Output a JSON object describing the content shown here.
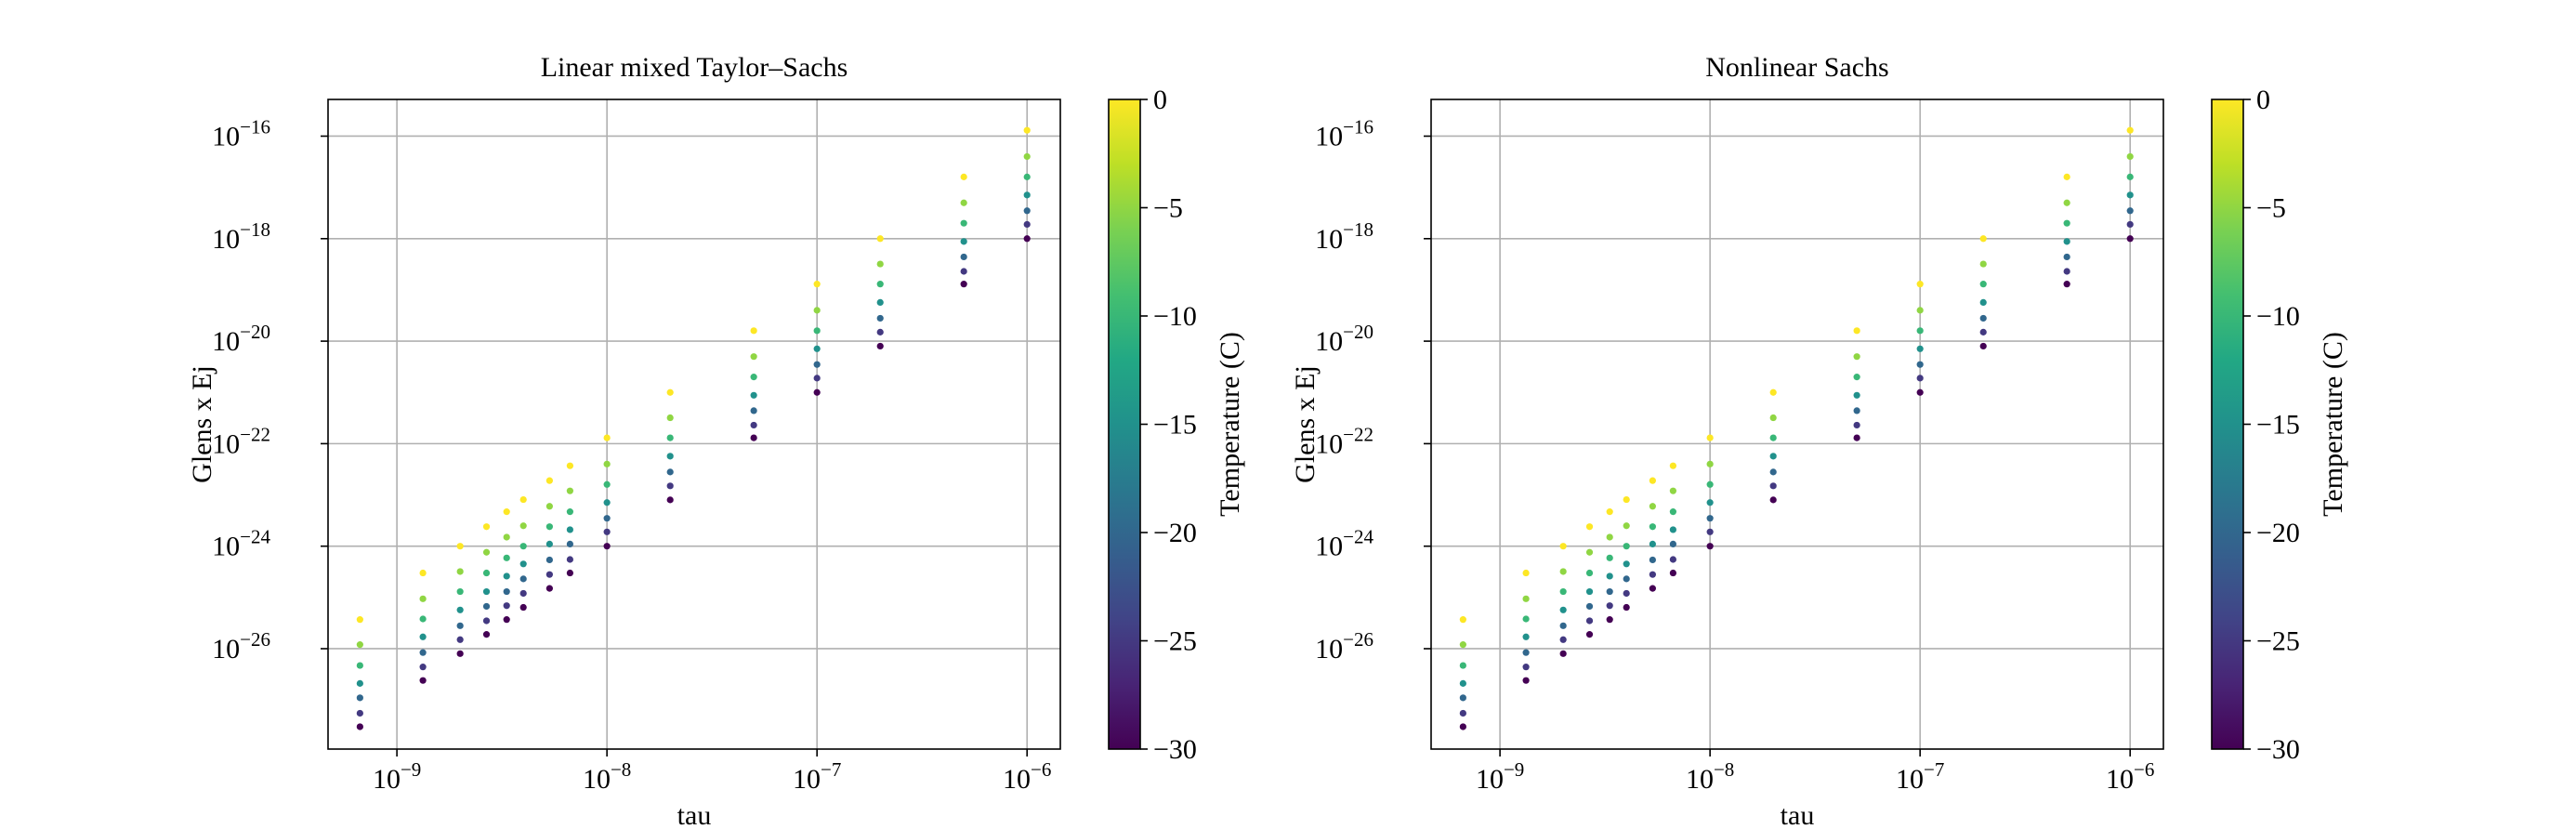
{
  "chart_data": [
    {
      "type": "scatter",
      "title": "Linear mixed Taylor–Sachs",
      "x_label": "tau",
      "y_label": "Glens x Ej",
      "colorbar_label": "Temperature (C)",
      "colormap": "viridis",
      "clim": [
        -30,
        0
      ],
      "cticks": [
        0,
        {
          "value": -5,
          "label": "−5"
        },
        {
          "value": -10,
          "label": "−10"
        },
        {
          "value": -15,
          "label": "−15"
        },
        {
          "value": -20,
          "label": "−20"
        },
        {
          "value": -25,
          "label": "−25"
        },
        {
          "value": -30,
          "label": "−30"
        }
      ],
      "log_x": true,
      "log_y": true,
      "grid": true,
      "xlim": [
        4.7e-10,
        1.44e-06
      ],
      "ylim": [
        1.1e-28,
        5.2e-16
      ],
      "xticks": [
        {
          "value": 1e-09,
          "label": "10",
          "exponent": "−9"
        },
        {
          "value": 1e-08,
          "label": "10",
          "exponent": "−8"
        },
        {
          "value": 1e-07,
          "label": "10",
          "exponent": "−7"
        },
        {
          "value": 1e-06,
          "label": "10",
          "exponent": "−6"
        }
      ],
      "yticks": [
        {
          "value": 1e-16,
          "label": "10",
          "exponent": "−16"
        },
        {
          "value": 1e-18,
          "label": "10",
          "exponent": "−18"
        },
        {
          "value": 1e-20,
          "label": "10",
          "exponent": "−20"
        },
        {
          "value": 1e-22,
          "label": "10",
          "exponent": "−22"
        },
        {
          "value": 1e-24,
          "label": "10",
          "exponent": "−24"
        },
        {
          "value": 1e-26,
          "label": "10",
          "exponent": "−26"
        }
      ],
      "x": [
        6.67e-10,
        1.33e-09,
        2e-09,
        2.67e-09,
        3.33e-09,
        4e-09,
        5.33e-09,
        6.67e-09,
        1e-08,
        2e-08,
        5e-08,
        1e-07,
        2e-07,
        5e-07,
        1e-06
      ],
      "series": [
        {
          "temperature": -30,
          "values": [
            3e-28,
            2.4e-27,
            8e-27,
            1.9e-26,
            3.7e-26,
            6.4e-26,
            1.5e-25,
            3e-25,
            1e-24,
            8e-24,
            1.3e-22,
            1e-21,
            8e-21,
            1.3e-19,
            1e-18
          ]
        },
        {
          "temperature": -25,
          "values": [
            5.5e-28,
            4.4e-27,
            1.5e-26,
            3.5e-26,
            6.9e-26,
            1.2e-25,
            2.8e-25,
            5.5e-25,
            1.9e-24,
            1.5e-23,
            2.3e-22,
            1.9e-21,
            1.5e-20,
            2.3e-19,
            1.9e-18
          ]
        },
        {
          "temperature": -20,
          "values": [
            1.1e-27,
            8.4e-27,
            2.8e-26,
            6.7e-26,
            1.3e-25,
            2.3e-25,
            5.4e-25,
            1.1e-24,
            3.5e-24,
            2.8e-23,
            4.4e-22,
            3.5e-21,
            2.8e-20,
            4.4e-19,
            3.5e-18
          ]
        },
        {
          "temperature": -15,
          "values": [
            2.1e-27,
            1.7e-26,
            5.7e-26,
            1.3e-25,
            2.6e-25,
            4.5e-25,
            1.1e-24,
            2.1e-24,
            7.1e-24,
            5.7e-23,
            8.8e-22,
            7.1e-21,
            5.7e-20,
            8.8e-19,
            7.1e-18
          ]
        },
        {
          "temperature": -10,
          "values": [
            4.7e-27,
            3.8e-26,
            1.3e-25,
            3e-25,
            5.9e-25,
            1e-24,
            2.4e-24,
            4.7e-24,
            1.6e-23,
            1.3e-22,
            2e-21,
            1.6e-20,
            1.3e-19,
            2e-18,
            1.6e-17
          ]
        },
        {
          "temperature": -5,
          "values": [
            1.2e-26,
            9.4e-26,
            3.2e-25,
            7.6e-25,
            1.5e-24,
            2.5e-24,
            6e-24,
            1.2e-23,
            4e-23,
            3.2e-22,
            5e-21,
            4e-20,
            3.2e-19,
            5e-18,
            4e-17
          ]
        },
        {
          "temperature": 0,
          "values": [
            3.7e-26,
            3e-25,
            1e-24,
            2.4e-24,
            4.7e-24,
            8.1e-24,
            1.9e-23,
            3.7e-23,
            1.3e-22,
            1e-21,
            1.6e-20,
            1.3e-19,
            1e-18,
            1.6e-17,
            1.3e-16
          ]
        }
      ]
    },
    {
      "type": "scatter",
      "title": "Nonlinear Sachs",
      "x_label": "tau",
      "y_label": "Glens x Ej",
      "colorbar_label": "Temperature (C)",
      "colormap": "viridis",
      "clim": [
        -30,
        0
      ],
      "cticks": [
        0,
        {
          "value": -5,
          "label": "−5"
        },
        {
          "value": -10,
          "label": "−10"
        },
        {
          "value": -15,
          "label": "−15"
        },
        {
          "value": -20,
          "label": "−20"
        },
        {
          "value": -25,
          "label": "−25"
        },
        {
          "value": -30,
          "label": "−30"
        }
      ],
      "log_x": true,
      "log_y": true,
      "grid": true,
      "xlim": [
        4.7e-10,
        1.44e-06
      ],
      "ylim": [
        1.1e-28,
        5.2e-16
      ],
      "xticks": [
        {
          "value": 1e-09,
          "label": "10",
          "exponent": "−9"
        },
        {
          "value": 1e-08,
          "label": "10",
          "exponent": "−8"
        },
        {
          "value": 1e-07,
          "label": "10",
          "exponent": "−7"
        },
        {
          "value": 1e-06,
          "label": "10",
          "exponent": "−6"
        }
      ],
      "yticks": [
        {
          "value": 1e-16,
          "label": "10",
          "exponent": "−16"
        },
        {
          "value": 1e-18,
          "label": "10",
          "exponent": "−18"
        },
        {
          "value": 1e-20,
          "label": "10",
          "exponent": "−20"
        },
        {
          "value": 1e-22,
          "label": "10",
          "exponent": "−22"
        },
        {
          "value": 1e-24,
          "label": "10",
          "exponent": "−24"
        },
        {
          "value": 1e-26,
          "label": "10",
          "exponent": "−26"
        }
      ],
      "x": [
        6.67e-10,
        1.33e-09,
        2e-09,
        2.67e-09,
        3.33e-09,
        4e-09,
        5.33e-09,
        6.67e-09,
        1e-08,
        2e-08,
        5e-08,
        1e-07,
        2e-07,
        5e-07,
        1e-06
      ],
      "series": [
        {
          "temperature": -30,
          "values": [
            3e-28,
            2.4e-27,
            8e-27,
            1.9e-26,
            3.7e-26,
            6.4e-26,
            1.5e-25,
            3e-25,
            1e-24,
            8e-24,
            1.3e-22,
            1e-21,
            8e-21,
            1.3e-19,
            1e-18
          ]
        },
        {
          "temperature": -25,
          "values": [
            5.5e-28,
            4.4e-27,
            1.5e-26,
            3.5e-26,
            6.9e-26,
            1.2e-25,
            2.8e-25,
            5.5e-25,
            1.9e-24,
            1.5e-23,
            2.3e-22,
            1.9e-21,
            1.5e-20,
            2.3e-19,
            1.9e-18
          ]
        },
        {
          "temperature": -20,
          "values": [
            1.1e-27,
            8.4e-27,
            2.8e-26,
            6.7e-26,
            1.3e-25,
            2.3e-25,
            5.4e-25,
            1.1e-24,
            3.5e-24,
            2.8e-23,
            4.4e-22,
            3.5e-21,
            2.8e-20,
            4.4e-19,
            3.5e-18
          ]
        },
        {
          "temperature": -15,
          "values": [
            2.1e-27,
            1.7e-26,
            5.7e-26,
            1.3e-25,
            2.6e-25,
            4.5e-25,
            1.1e-24,
            2.1e-24,
            7.1e-24,
            5.7e-23,
            8.8e-22,
            7.1e-21,
            5.7e-20,
            8.8e-19,
            7.1e-18
          ]
        },
        {
          "temperature": -10,
          "values": [
            4.7e-27,
            3.8e-26,
            1.3e-25,
            3e-25,
            5.9e-25,
            1e-24,
            2.4e-24,
            4.7e-24,
            1.6e-23,
            1.3e-22,
            2e-21,
            1.6e-20,
            1.3e-19,
            2e-18,
            1.6e-17
          ]
        },
        {
          "temperature": -5,
          "values": [
            1.2e-26,
            9.4e-26,
            3.2e-25,
            7.6e-25,
            1.5e-24,
            2.5e-24,
            6e-24,
            1.2e-23,
            4e-23,
            3.2e-22,
            5e-21,
            4e-20,
            3.2e-19,
            5e-18,
            4e-17
          ]
        },
        {
          "temperature": 0,
          "values": [
            3.7e-26,
            3e-25,
            1e-24,
            2.4e-24,
            4.7e-24,
            8.1e-24,
            1.9e-23,
            3.7e-23,
            1.3e-22,
            1e-21,
            1.6e-20,
            1.3e-19,
            1e-18,
            1.6e-17,
            1.3e-16
          ]
        }
      ]
    }
  ]
}
